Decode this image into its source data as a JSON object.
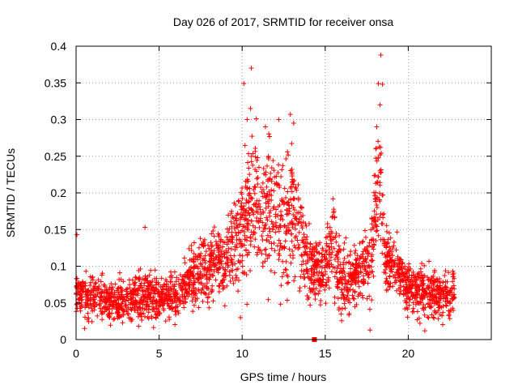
{
  "chart_data": {
    "type": "scatter",
    "title": "Day 026 of 2017, SRMTID for receiver onsa",
    "xlabel": "GPS time / hours",
    "ylabel": "SRMTID / TECUs",
    "xlim": [
      0,
      25
    ],
    "ylim": [
      0,
      0.4
    ],
    "x_ticks": [
      0,
      5,
      10,
      15,
      20
    ],
    "y_ticks": [
      0,
      0.05,
      0.1,
      0.15,
      0.2,
      0.25,
      0.3,
      0.35,
      0.4
    ],
    "x_tick_labels": [
      "0",
      "5",
      "10",
      "15",
      "20"
    ],
    "y_tick_labels": [
      "0",
      "0.05",
      "0.1",
      "0.15",
      "0.2",
      "0.25",
      "0.3",
      "0.35",
      "0.4"
    ],
    "grid": true,
    "marker": "+",
    "color": "#ff0000",
    "data_x_range_hours": [
      0,
      22.8
    ],
    "envelope": [
      {
        "x": 0.0,
        "mean": 0.062,
        "spread": 0.028
      },
      {
        "x": 1.0,
        "mean": 0.058,
        "spread": 0.026
      },
      {
        "x": 2.0,
        "mean": 0.052,
        "spread": 0.025
      },
      {
        "x": 3.0,
        "mean": 0.05,
        "spread": 0.024
      },
      {
        "x": 4.0,
        "mean": 0.06,
        "spread": 0.03
      },
      {
        "x": 5.0,
        "mean": 0.055,
        "spread": 0.024
      },
      {
        "x": 6.0,
        "mean": 0.06,
        "spread": 0.026
      },
      {
        "x": 7.0,
        "mean": 0.085,
        "spread": 0.035
      },
      {
        "x": 8.0,
        "mean": 0.1,
        "spread": 0.04
      },
      {
        "x": 9.0,
        "mean": 0.105,
        "spread": 0.045
      },
      {
        "x": 10.0,
        "mean": 0.15,
        "spread": 0.07
      },
      {
        "x": 10.5,
        "mean": 0.185,
        "spread": 0.08
      },
      {
        "x": 11.0,
        "mean": 0.18,
        "spread": 0.08
      },
      {
        "x": 12.0,
        "mean": 0.17,
        "spread": 0.075
      },
      {
        "x": 12.5,
        "mean": 0.14,
        "spread": 0.07
      },
      {
        "x": 13.0,
        "mean": 0.18,
        "spread": 0.075
      },
      {
        "x": 14.0,
        "mean": 0.1,
        "spread": 0.045
      },
      {
        "x": 15.0,
        "mean": 0.09,
        "spread": 0.035
      },
      {
        "x": 15.5,
        "mean": 0.13,
        "spread": 0.06
      },
      {
        "x": 16.0,
        "mean": 0.08,
        "spread": 0.04
      },
      {
        "x": 17.0,
        "mean": 0.085,
        "spread": 0.035
      },
      {
        "x": 17.7,
        "mean": 0.11,
        "spread": 0.045
      },
      {
        "x": 18.3,
        "mean": 0.22,
        "spread": 0.09
      },
      {
        "x": 18.6,
        "mean": 0.11,
        "spread": 0.04
      },
      {
        "x": 19.5,
        "mean": 0.09,
        "spread": 0.03
      },
      {
        "x": 20.0,
        "mean": 0.07,
        "spread": 0.03
      },
      {
        "x": 21.0,
        "mean": 0.065,
        "spread": 0.028
      },
      {
        "x": 22.0,
        "mean": 0.06,
        "spread": 0.028
      },
      {
        "x": 22.8,
        "mean": 0.06,
        "spread": 0.028
      }
    ],
    "notable_points": [
      {
        "x": 0.05,
        "y": 0.143
      },
      {
        "x": 4.15,
        "y": 0.153
      },
      {
        "x": 10.1,
        "y": 0.349
      },
      {
        "x": 10.55,
        "y": 0.37
      },
      {
        "x": 10.5,
        "y": 0.315
      },
      {
        "x": 10.3,
        "y": 0.3
      },
      {
        "x": 11.4,
        "y": 0.29
      },
      {
        "x": 12.2,
        "y": 0.3
      },
      {
        "x": 12.9,
        "y": 0.307
      },
      {
        "x": 13.1,
        "y": 0.295
      },
      {
        "x": 18.2,
        "y": 0.349
      },
      {
        "x": 18.35,
        "y": 0.388
      },
      {
        "x": 18.45,
        "y": 0.348
      },
      {
        "x": 18.3,
        "y": 0.32
      },
      {
        "x": 18.1,
        "y": 0.29
      },
      {
        "x": 17.7,
        "y": 0.013
      },
      {
        "x": 21.0,
        "y": 0.012
      },
      {
        "x": 9.9,
        "y": 0.03
      }
    ],
    "square_marker": {
      "x": 14.35,
      "y": 0.0
    }
  }
}
